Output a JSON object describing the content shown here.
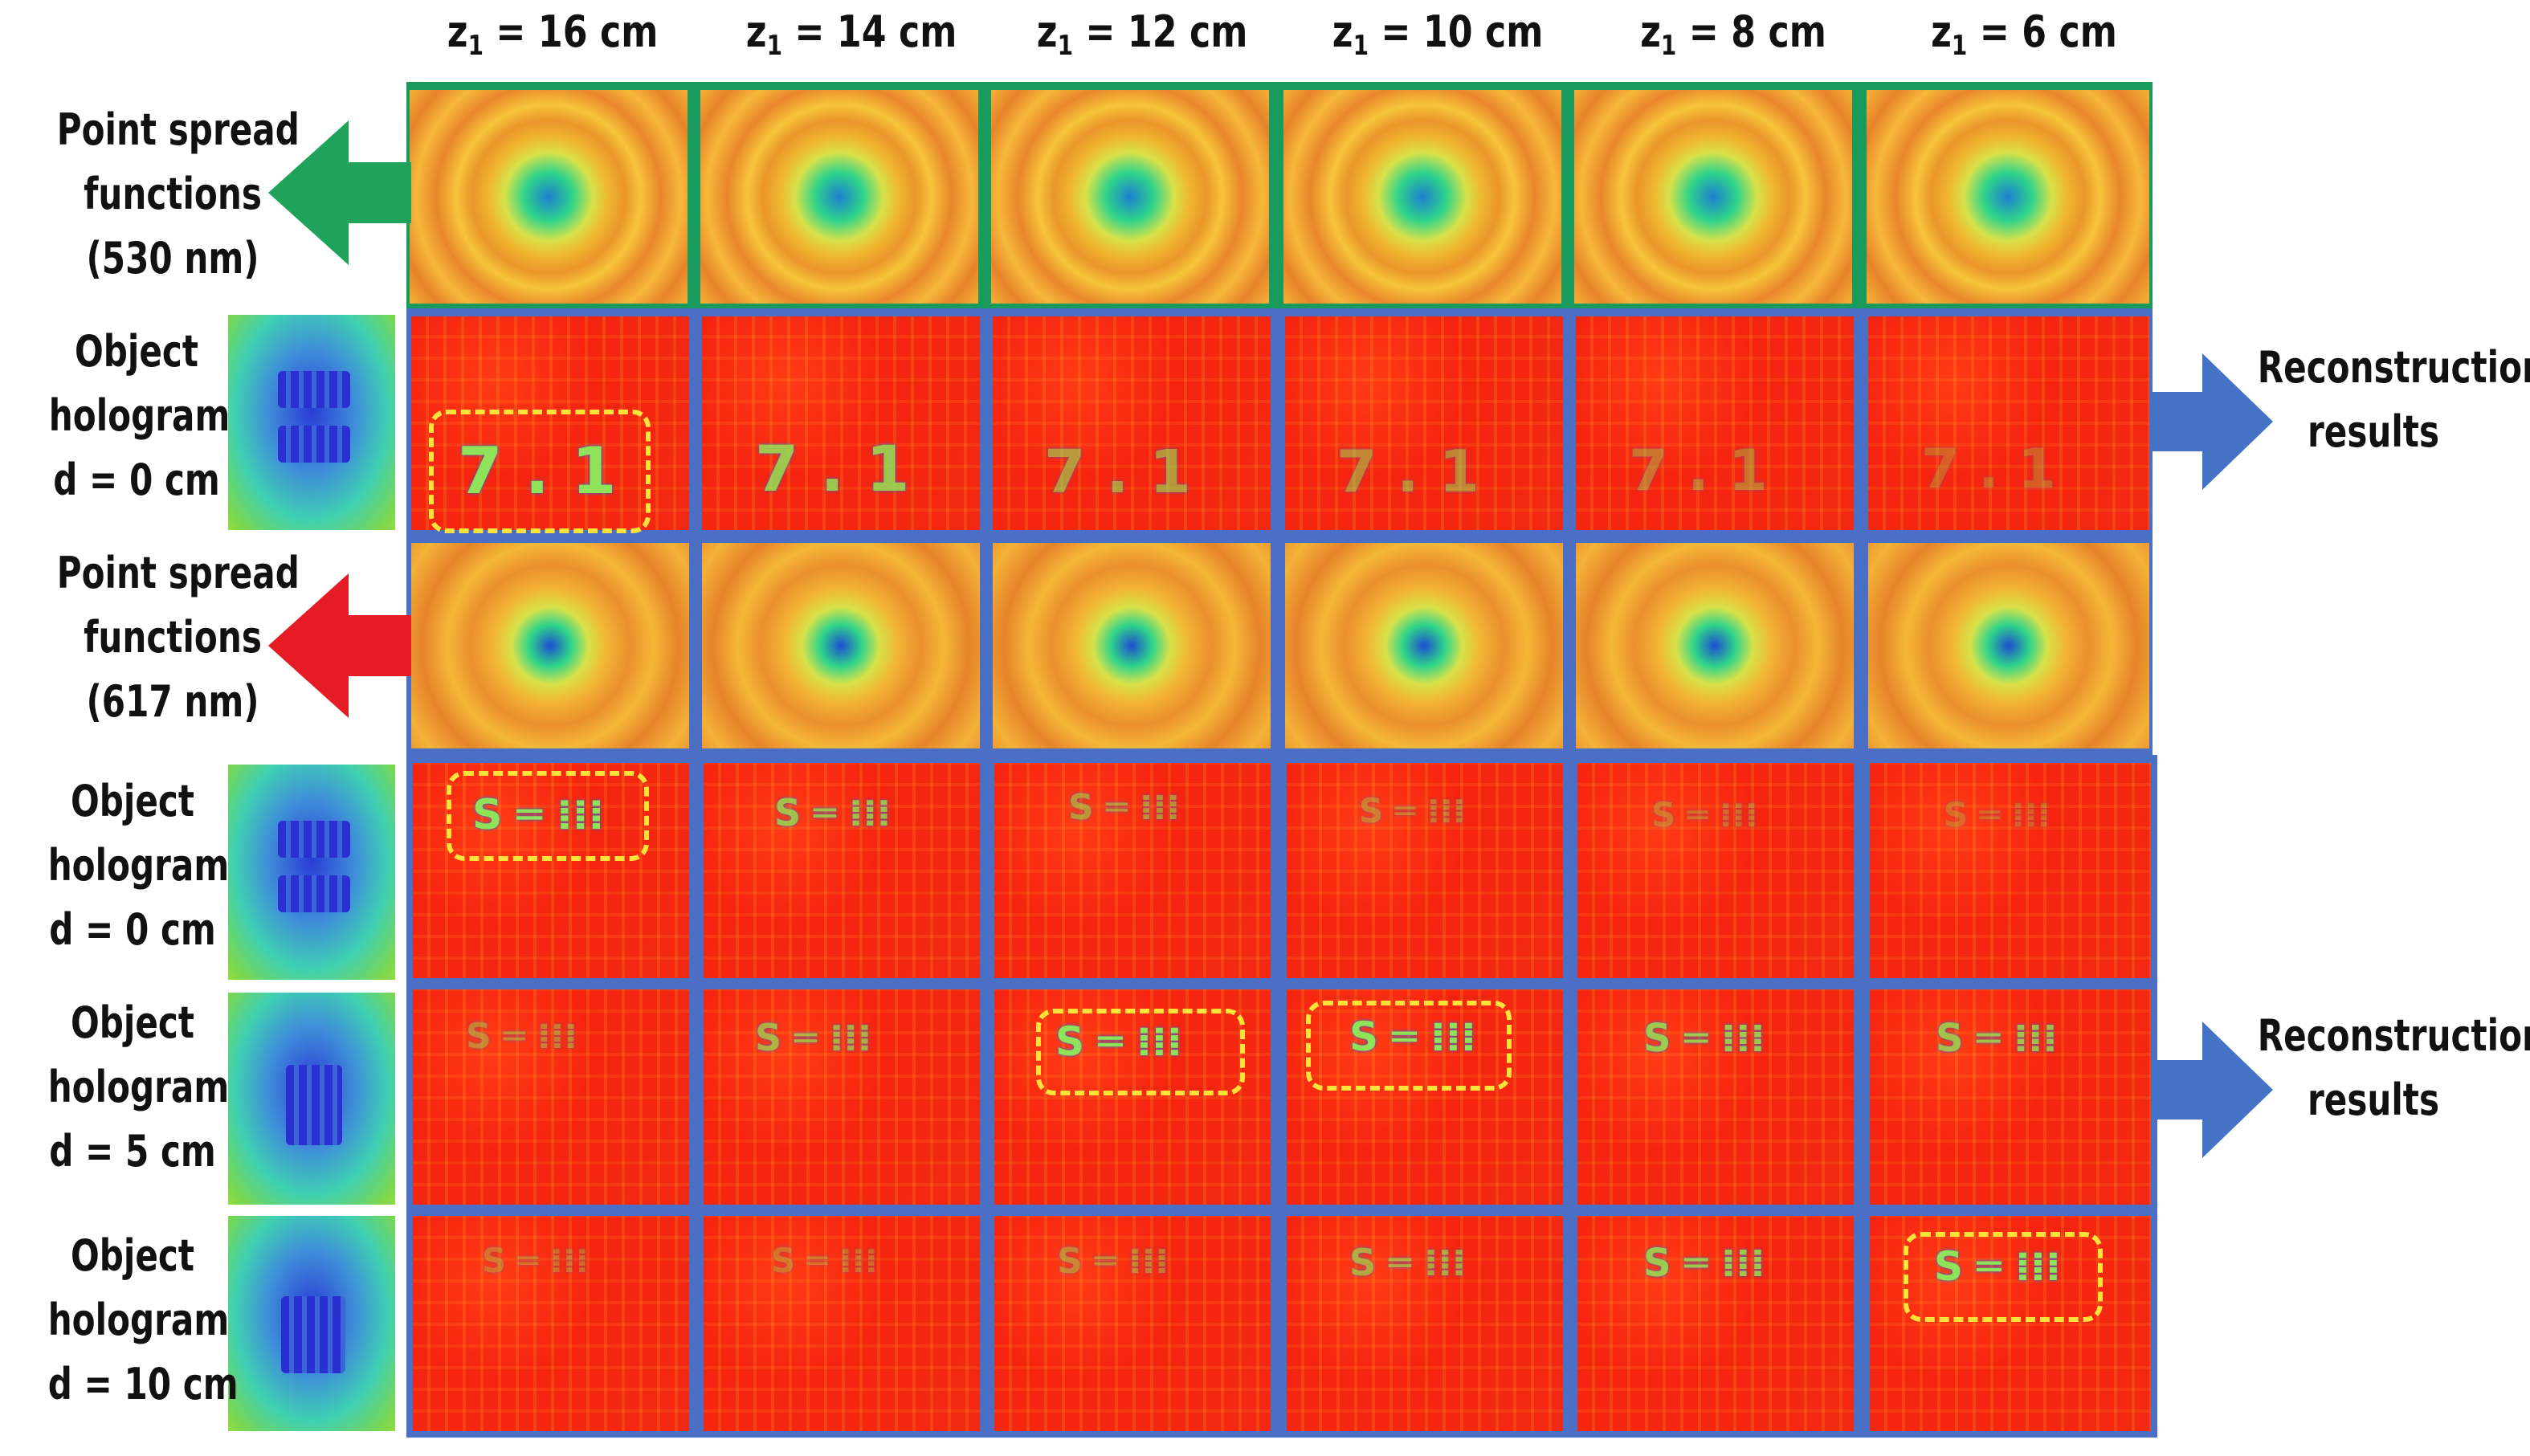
{
  "columns": {
    "c1": {
      "pre": "z",
      "sub": "1",
      "post": " = 16 cm"
    },
    "c2": {
      "pre": "z",
      "sub": "1",
      "post": " = 14 cm"
    },
    "c3": {
      "pre": "z",
      "sub": "1",
      "post": " = 12 cm"
    },
    "c4": {
      "pre": "z",
      "sub": "1",
      "post": " = 10 cm"
    },
    "c5": {
      "pre": "z",
      "sub": "1",
      "post": " = 8 cm"
    },
    "c6": {
      "pre": "z",
      "sub": "1",
      "post": " = 6 cm"
    }
  },
  "left": {
    "psf530": {
      "l1": "Point spread",
      "l2": "functions",
      "l3": "(530 nm)"
    },
    "hologram_green": {
      "l1": "Object",
      "l2": "hologram",
      "l3": "d = 0 cm"
    },
    "psf617": {
      "l1": "Point spread",
      "l2": "functions",
      "l3": "(617 nm)"
    },
    "hologram_red_0": {
      "l1": "Object",
      "l2": "hologram",
      "l3": "d = 0 cm"
    },
    "hologram_red_5": {
      "l1": "Object",
      "l2": "hologram",
      "l3": "d = 5 cm"
    },
    "hologram_red_10": {
      "l1": "Object",
      "l2": "hologram",
      "l3": "d = 10 cm"
    }
  },
  "right": {
    "upper": {
      "l1": "Reconstruction",
      "l2": "results"
    },
    "lower": {
      "l1": "Reconstruction",
      "l2": "results"
    }
  },
  "glyphs": {
    "seven_one": "7 . 1",
    "s_equals": "S ═ ⁞⁞⁞"
  },
  "colors": {
    "green_arrow": "#1fa35a",
    "red_arrow": "#e51c24",
    "blue_arrow": "#4472c4",
    "psf_frame": "#1a9b5e",
    "grid_frame": "#4a6fc4",
    "highlight_box": "#ffe23a"
  }
}
